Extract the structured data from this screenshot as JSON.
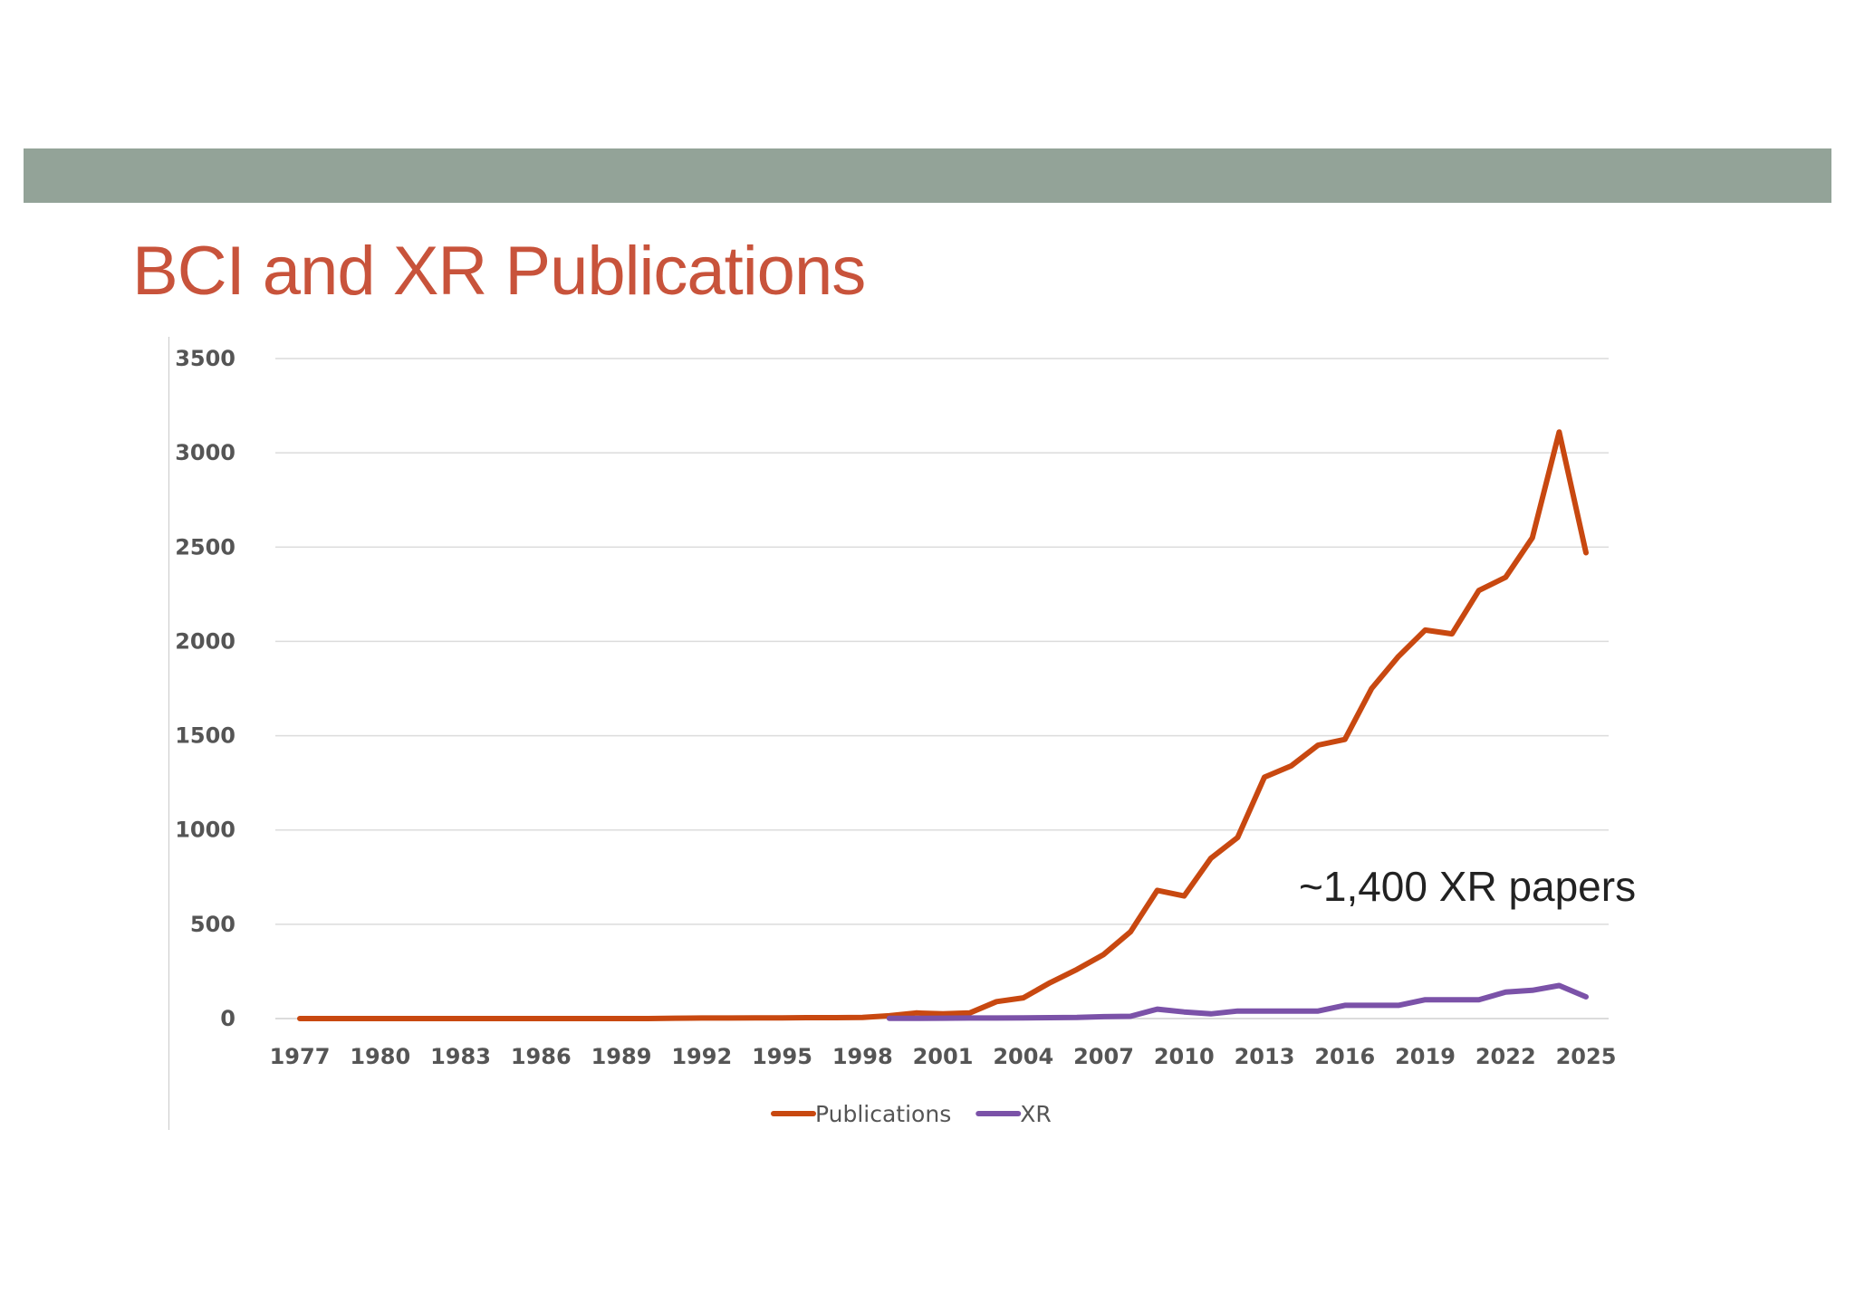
{
  "slide": {
    "title": "BCI and XR Publications",
    "annotation": "~1,400 XR papers",
    "band_color": "#93a398",
    "title_color": "#c8533b"
  },
  "chart_data": {
    "type": "line",
    "title": "",
    "xlabel": "",
    "ylabel": "",
    "ylim": [
      0,
      3500
    ],
    "yticks": [
      "0",
      "500",
      "1000",
      "1500",
      "2000",
      "2500",
      "3000",
      "3500"
    ],
    "xticks": [
      "1977",
      "1980",
      "1983",
      "1986",
      "1989",
      "1992",
      "1995",
      "1998",
      "2001",
      "2004",
      "2007",
      "2010",
      "2013",
      "2016",
      "2019",
      "2022",
      "2025"
    ],
    "grid": true,
    "legend_position": "bottom",
    "x": [
      1977,
      1978,
      1979,
      1980,
      1981,
      1982,
      1983,
      1984,
      1985,
      1986,
      1987,
      1988,
      1989,
      1990,
      1991,
      1992,
      1993,
      1994,
      1995,
      1996,
      1997,
      1998,
      1999,
      2000,
      2001,
      2002,
      2003,
      2004,
      2005,
      2006,
      2007,
      2008,
      2009,
      2010,
      2011,
      2012,
      2013,
      2014,
      2015,
      2016,
      2017,
      2018,
      2019,
      2020,
      2021,
      2022,
      2023,
      2024,
      2025
    ],
    "series": [
      {
        "name": "Publications",
        "color": "#c84810",
        "values": [
          0,
          0,
          0,
          0,
          0,
          0,
          0,
          0,
          0,
          0,
          0,
          0,
          0,
          0,
          2,
          3,
          3,
          4,
          4,
          5,
          5,
          6,
          15,
          30,
          25,
          30,
          90,
          110,
          190,
          260,
          340,
          460,
          680,
          650,
          850,
          960,
          1280,
          1340,
          1450,
          1480,
          1750,
          1920,
          2060,
          2040,
          2270,
          2340,
          2550,
          3110,
          2470
        ]
      },
      {
        "name": "XR",
        "color": "#7b52a8",
        "values": [
          null,
          null,
          null,
          null,
          null,
          null,
          null,
          null,
          null,
          null,
          null,
          null,
          null,
          null,
          null,
          null,
          null,
          null,
          null,
          null,
          null,
          null,
          1,
          1,
          2,
          3,
          3,
          4,
          5,
          6,
          10,
          12,
          50,
          35,
          25,
          40,
          40,
          40,
          40,
          70,
          70,
          70,
          100,
          100,
          100,
          140,
          150,
          175,
          115
        ]
      }
    ]
  }
}
